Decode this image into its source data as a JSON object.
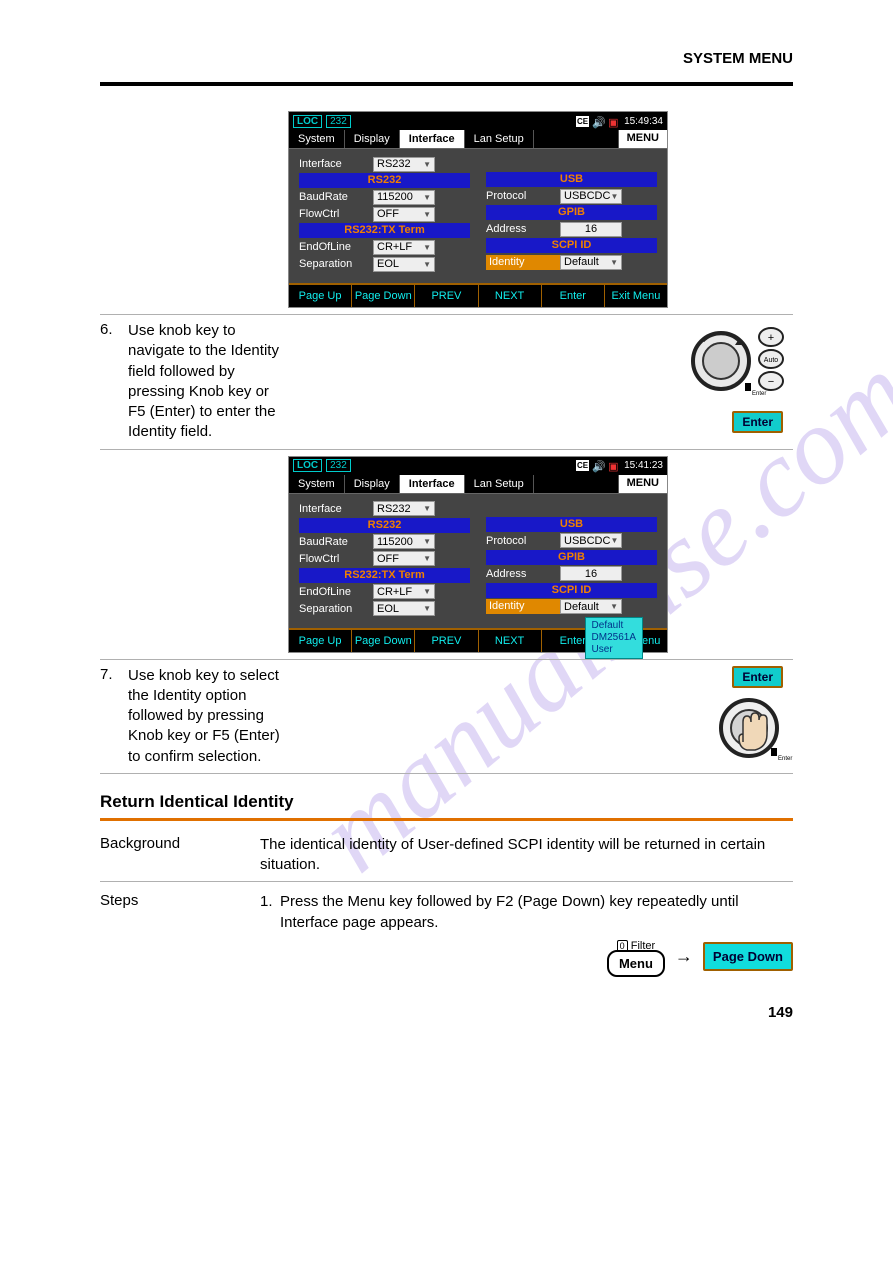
{
  "headerRight": "SYSTEM MENU",
  "pageNumber": "149",
  "watermark": "manualsuse.com",
  "steps": {
    "s1": {
      "num": "",
      "txt": ""
    },
    "s2": {
      "num": "6.",
      "txt": "Use knob key to navigate to the Identity field followed by pressing Knob key or F5 (Enter) to enter the Identity field."
    },
    "s3": {
      "txt": ""
    },
    "s4": {
      "num": "7.",
      "txt": "Use knob key to select the Identity option followed by pressing Knob key or F5 (Enter) to confirm selection."
    }
  },
  "screenshot1": {
    "time": "15:49:34",
    "identityVal": "Default"
  },
  "screenshot2": {
    "time": "15:41:23",
    "identityVal": "Default",
    "popup": [
      "Default",
      "DM2561A",
      "User"
    ]
  },
  "deviceCommon": {
    "loc": "LOC",
    "port": "232",
    "tabs": [
      "System",
      "Display",
      "Interface",
      "Lan Setup"
    ],
    "menuBtn": "MENU",
    "left": {
      "interface": {
        "label": "Interface",
        "val": "RS232"
      },
      "band1": "RS232",
      "baud": {
        "label": "BaudRate",
        "val": "115200"
      },
      "flow": {
        "label": "FlowCtrl",
        "val": "OFF"
      },
      "band2": "RS232:TX Term",
      "eol": {
        "label": "EndOfLine",
        "val": "CR+LF"
      },
      "sep": {
        "label": "Separation",
        "val": "EOL"
      }
    },
    "right": {
      "band1": "USB",
      "proto": {
        "label": "Protocol",
        "val": "USBCDC"
      },
      "band2": "GPIB",
      "addr": {
        "label": "Address",
        "val": "16"
      },
      "band3": "SCPI ID",
      "identity": {
        "label": "Identity"
      }
    },
    "softkeys": [
      "Page Up",
      "Page Down",
      "PREV",
      "NEXT",
      "Enter",
      "Exit Menu"
    ]
  },
  "enterKey": "Enter",
  "returnSection": {
    "title": "Return Identical Identity",
    "background": {
      "label": "Background",
      "text": "The identical identity of User-defined SCPI identity will be returned in certain situation."
    },
    "steps": {
      "label": "Steps",
      "num": "1.",
      "text": "Press the Menu key followed by F2 (Page Down) key repeatedly until Interface page appears."
    }
  },
  "menuStep": {
    "filter": "Filter",
    "menu": "Menu",
    "pageDown": "Page Down",
    "zero": "0"
  }
}
